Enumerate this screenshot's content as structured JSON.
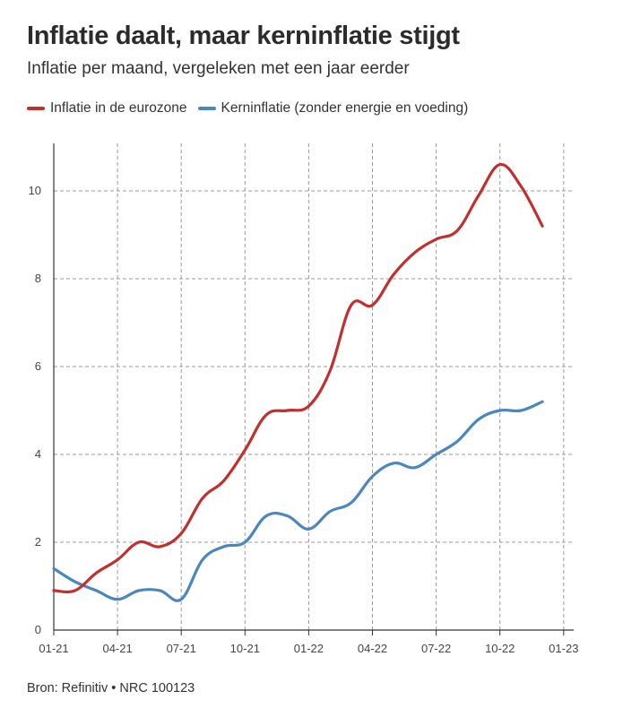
{
  "title": "Inflatie daalt, maar kerninflatie stijgt",
  "subtitle": "Inflatie per maand, vergeleken met een jaar eerder",
  "source": "Bron: Refinitiv • NRC 100123",
  "colors": {
    "inflation": "#c0302f",
    "core": "#4b86bd",
    "grid": "#999999",
    "axis": "#333333"
  },
  "legend": {
    "inflation": "Inflatie in de eurozone",
    "core": "Kerninflatie (zonder energie en voeding)"
  },
  "chart_data": {
    "type": "line",
    "title": "Inflatie daalt, maar kerninflatie stijgt",
    "subtitle": "Inflatie per maand, vergeleken met een jaar eerder",
    "xlabel": "",
    "ylabel": "",
    "xlim": [
      "2021-01",
      "2022-12"
    ],
    "ylim": [
      0,
      11
    ],
    "grid": true,
    "legend_position": "top",
    "x_tick_labels": [
      "01-21",
      "04-21",
      "07-21",
      "10-21",
      "01-22",
      "04-22",
      "07-22",
      "10-22",
      "01-23"
    ],
    "y_tick_labels": [
      "0",
      "2",
      "4",
      "6",
      "8",
      "10"
    ],
    "x": [
      "2021-01",
      "2021-02",
      "2021-03",
      "2021-04",
      "2021-05",
      "2021-06",
      "2021-07",
      "2021-08",
      "2021-09",
      "2021-10",
      "2021-11",
      "2021-12",
      "2022-01",
      "2022-02",
      "2022-03",
      "2022-04",
      "2022-05",
      "2022-06",
      "2022-07",
      "2022-08",
      "2022-09",
      "2022-10",
      "2022-11",
      "2022-12"
    ],
    "series": [
      {
        "name": "Inflatie in de eurozone",
        "values": [
          0.9,
          0.9,
          1.3,
          1.6,
          2.0,
          1.9,
          2.2,
          3.0,
          3.4,
          4.1,
          4.9,
          5.0,
          5.1,
          5.9,
          7.4,
          7.4,
          8.1,
          8.6,
          8.9,
          9.1,
          9.9,
          10.6,
          10.1,
          9.2
        ]
      },
      {
        "name": "Kerninflatie (zonder energie en voeding)",
        "values": [
          1.4,
          1.1,
          0.9,
          0.7,
          0.9,
          0.9,
          0.7,
          1.6,
          1.9,
          2.0,
          2.6,
          2.6,
          2.3,
          2.7,
          2.9,
          3.5,
          3.8,
          3.7,
          4.0,
          4.3,
          4.8,
          5.0,
          5.0,
          5.2
        ]
      }
    ]
  }
}
